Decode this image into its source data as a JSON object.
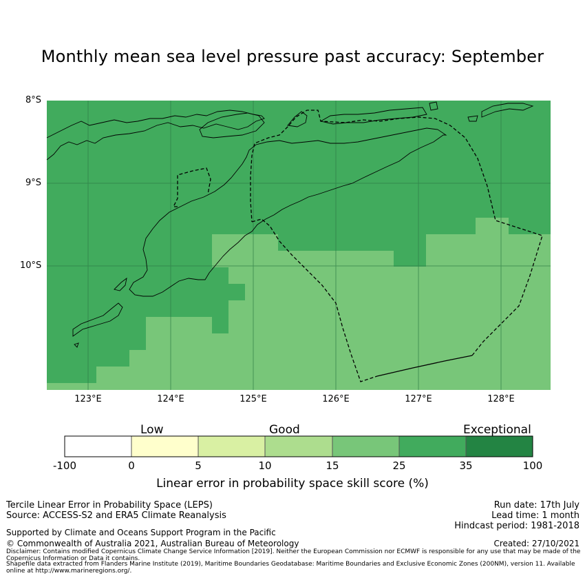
{
  "title": "Monthly mean sea level pressure past accuracy: September",
  "map": {
    "lat_labels": [
      "8°S",
      "9°S",
      "10°S"
    ],
    "lon_labels": [
      "123°E",
      "124°E",
      "125°E",
      "126°E",
      "127°E",
      "128°E"
    ],
    "lon_extent": [
      122.5,
      128.6
    ],
    "lat_extent": [
      -11.5,
      -8.0
    ],
    "colors": {
      "band_25_35": "#41ab5d",
      "band_15_25": "#78c679",
      "coast": "#000000",
      "eez_boundary": "#000000",
      "gridline": "#2e7d47"
    }
  },
  "colorbar": {
    "categories": [
      "Low",
      "Good",
      "Exceptional"
    ],
    "ticks": [
      "-100",
      "0",
      "5",
      "10",
      "15",
      "25",
      "35",
      "100"
    ],
    "colors": [
      "#ffffff",
      "#ffffcc",
      "#d9f0a3",
      "#addd8e",
      "#78c679",
      "#41ab5d",
      "#238443"
    ],
    "label": "Linear error in probability space skill score (%)"
  },
  "footer": {
    "method": "Tercile Linear Error in Probability Space (LEPS)",
    "source": "Source: ACCESS-S2 and ERA5 Climate Reanalysis",
    "run_date": "Run date: 17th July",
    "lead_time": "Lead time: 1 month",
    "hindcast": "Hindcast period: 1981-2018",
    "support": "Supported by Climate and Oceans Support Program in the Pacific",
    "copyright": "© Commonwealth of Australia 2021, Australian Bureau of Meteorology",
    "created": "Created: 27/10/2021",
    "disclaimer": "Disclaimer: Contains modified Copernicus Climate Change Service Information [2019]. Neither the European Commission nor ECMWF is responsible for any use that may be made of the Copernicus Information or Data it contains.",
    "shapefile": "Shapefile data extracted from Flanders Marine Institute (2019), Maritime Boundaries Geodatabase: Maritime Boundaries and Exclusive Economic Zones (200NM), version 11. Available online at http://www.marineregions.org/."
  }
}
